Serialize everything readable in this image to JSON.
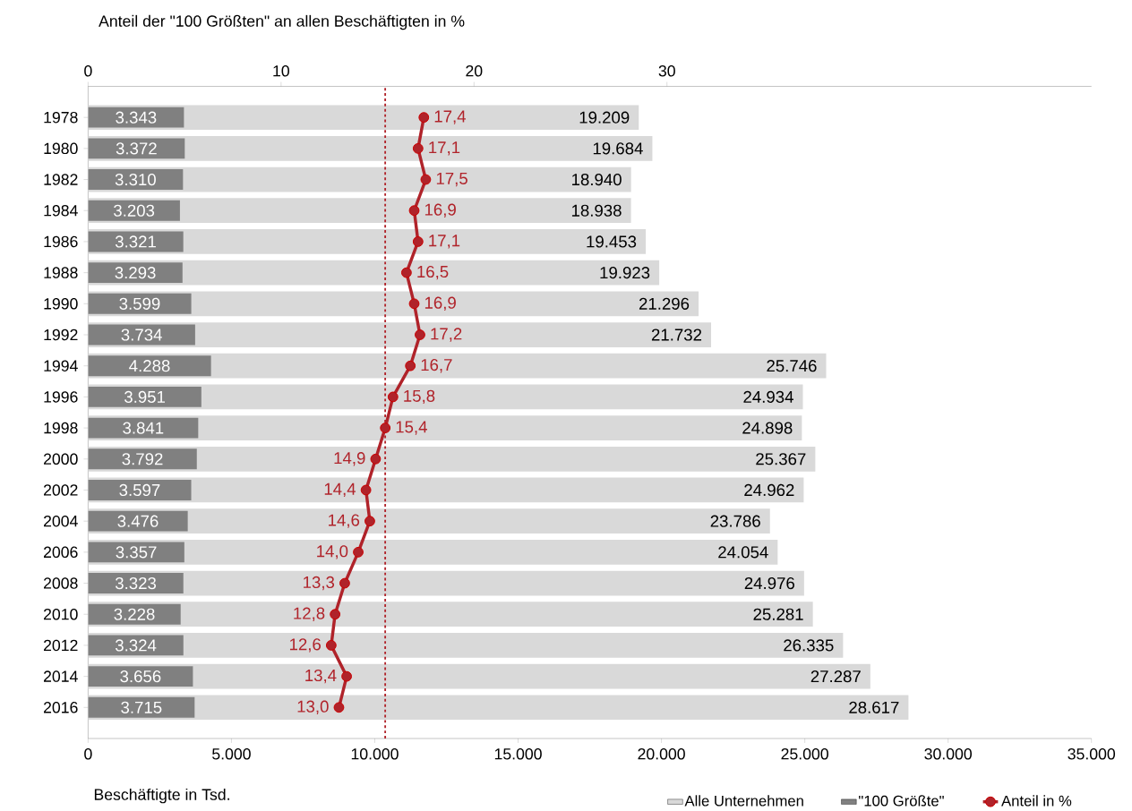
{
  "chart_data": {
    "type": "bar",
    "orientation": "horizontal",
    "xlabel": "Beschäftigte in Tsd.",
    "x2label": "Anteil der \"100 Größten\" an allen Beschäftigten in %",
    "categories": [
      "1978",
      "1980",
      "1982",
      "1984",
      "1986",
      "1988",
      "1990",
      "1992",
      "1994",
      "1996",
      "1998",
      "2000",
      "2002",
      "2004",
      "2006",
      "2008",
      "2010",
      "2012",
      "2014",
      "2016"
    ],
    "series": [
      {
        "name": "Alle Unternehmen",
        "color": "#d9d9d9",
        "values": [
          19209,
          19684,
          18940,
          18938,
          19453,
          19923,
          21296,
          21732,
          25746,
          24934,
          24898,
          25367,
          24962,
          23786,
          24054,
          24976,
          25281,
          26335,
          27287,
          28617
        ],
        "value_labels": [
          "19.209",
          "19.684",
          "18.940",
          "18.938",
          "19.453",
          "19.923",
          "21.296",
          "21.732",
          "25.746",
          "24.934",
          "24.898",
          "25.367",
          "24.962",
          "23.786",
          "24.054",
          "24.976",
          "25.281",
          "26.335",
          "27.287",
          "28.617"
        ]
      },
      {
        "name": "\"100 Größte\"",
        "color": "#808080",
        "values": [
          3343,
          3372,
          3310,
          3203,
          3321,
          3293,
          3599,
          3734,
          4288,
          3951,
          3841,
          3792,
          3597,
          3476,
          3357,
          3323,
          3228,
          3324,
          3656,
          3715
        ],
        "value_labels": [
          "3.343",
          "3.372",
          "3.310",
          "3.203",
          "3.321",
          "3.293",
          "3.599",
          "3.734",
          "4.288",
          "3.951",
          "3.841",
          "3.792",
          "3.597",
          "3.476",
          "3.357",
          "3.323",
          "3.228",
          "3.324",
          "3.656",
          "3.715"
        ]
      },
      {
        "name": "Anteil in %",
        "type": "line",
        "axis": "x2",
        "color": "#b0232a",
        "marker": "circle",
        "values": [
          17.4,
          17.1,
          17.5,
          16.9,
          17.1,
          16.5,
          16.9,
          17.2,
          16.7,
          15.8,
          15.4,
          14.9,
          14.4,
          14.6,
          14.0,
          13.3,
          12.8,
          12.6,
          13.4,
          13.0
        ],
        "value_labels": [
          "17,4",
          "17,1",
          "17,5",
          "16,9",
          "17,1",
          "16,5",
          "16,9",
          "17,2",
          "16,7",
          "15,8",
          "15,4",
          "14,9",
          "14,4",
          "14,6",
          "14,0",
          "13,3",
          "12,8",
          "12,6",
          "13,4",
          "13,0"
        ]
      }
    ],
    "xlim": [
      0,
      35000
    ],
    "xticks": [
      0,
      {
        "value": 5000,
        "label": "5.000"
      },
      {
        "value": 10000,
        "label": "10.000"
      },
      {
        "value": 15000,
        "label": "15.000"
      },
      {
        "value": 20000,
        "label": "20.000"
      },
      {
        "value": 25000,
        "label": "25.000"
      },
      {
        "value": 30000,
        "label": "30.000"
      },
      {
        "value": 35000,
        "label": "35.000"
      }
    ],
    "x2lim": [
      0,
      52
    ],
    "x2ticks": [
      0,
      10,
      20,
      30
    ],
    "ref_lines": [
      {
        "axis": "x2",
        "value": 15.4,
        "color": "#b0232a",
        "line_style": "dashed"
      }
    ],
    "grid": false,
    "legend": "bottom right"
  }
}
